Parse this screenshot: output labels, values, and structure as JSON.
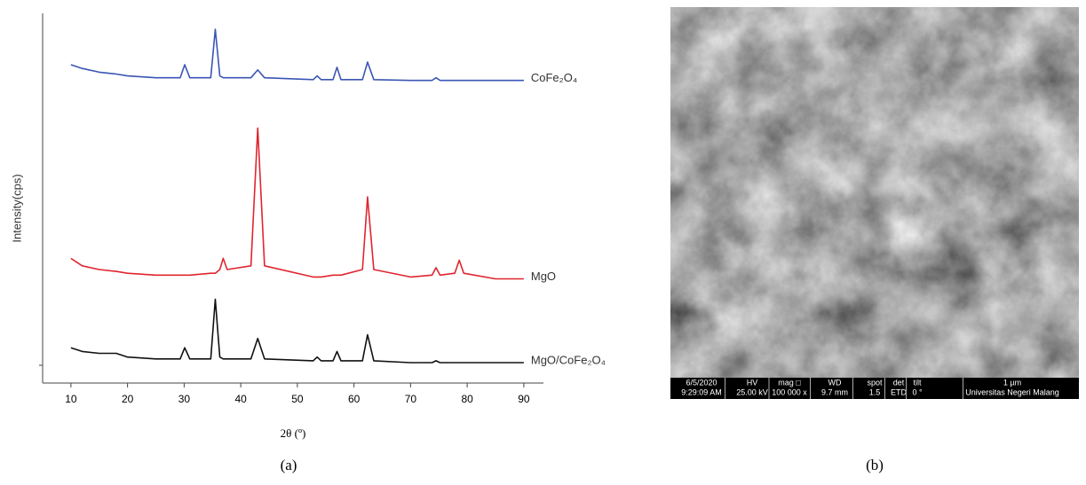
{
  "chart_data": {
    "type": "line",
    "xlabel": "2θ (º)",
    "ylabel": "Intensity(cps)",
    "x": [
      10,
      12,
      15,
      18,
      20,
      25,
      29.3,
      30.1,
      31,
      34.7,
      35.5,
      36.3,
      36.9,
      37.6,
      41.8,
      43.0,
      44.2,
      52.8,
      53.5,
      54.2,
      56.3,
      57.0,
      57.7,
      61.5,
      62.4,
      63.5,
      70,
      73.8,
      74.5,
      75.2,
      77.8,
      78.6,
      79.4,
      85,
      90
    ],
    "xlim": [
      5,
      93
    ],
    "xticks": [
      10,
      20,
      30,
      40,
      50,
      60,
      70,
      80,
      90
    ],
    "ylim": [
      0,
      100
    ],
    "series": [
      {
        "name": "CoFe₂O₄",
        "color": "#3a55b4",
        "values": [
          85,
          84,
          83,
          82.5,
          82,
          81.5,
          81.5,
          85,
          81.5,
          81.5,
          94.5,
          82,
          81.5,
          81.5,
          81.5,
          83.6,
          81.5,
          81,
          82,
          81,
          81,
          84.3,
          81,
          81,
          85.7,
          81,
          80.8,
          80.8,
          81.5,
          80.8,
          80.8,
          80.8,
          80.8,
          80.8,
          80.8
        ]
      },
      {
        "name": "MgO",
        "color": "#e0252f",
        "values": [
          33,
          31,
          30,
          29.5,
          29,
          28.5,
          28.5,
          28.5,
          28.5,
          29,
          29,
          30,
          33,
          30,
          31,
          68,
          31,
          28,
          28,
          28,
          28.5,
          28.5,
          28.5,
          30,
          49.5,
          30,
          28,
          28.5,
          30.5,
          28.5,
          29,
          32.5,
          29,
          27.5,
          27.5
        ]
      },
      {
        "name": "MgO/CoFe₂O₄",
        "color": "#111111",
        "values": [
          9,
          8,
          7.5,
          7.5,
          6.5,
          6,
          6,
          9,
          6,
          6,
          22,
          6.5,
          6,
          6,
          6,
          11.5,
          6,
          5.5,
          6.5,
          5.5,
          5.5,
          8,
          5.5,
          5.5,
          12.5,
          5.5,
          5,
          5,
          5.5,
          5,
          5,
          5,
          5,
          5,
          5
        ]
      }
    ]
  },
  "sem_image": {
    "info_bar": [
      [
        "6/5/2020",
        "9:29:09 AM"
      ],
      [
        "HV",
        "25.00 kV"
      ],
      [
        "mag □",
        "100 000 x"
      ],
      [
        "WD",
        "9.7 mm"
      ],
      [
        "spot",
        "1.5"
      ],
      [
        "det",
        "ETD"
      ],
      [
        "tilt",
        "0 °"
      ],
      [
        "1 µm",
        "Universitas Negeri Malang"
      ]
    ]
  },
  "captions": [
    "(a)",
    "(b)"
  ]
}
